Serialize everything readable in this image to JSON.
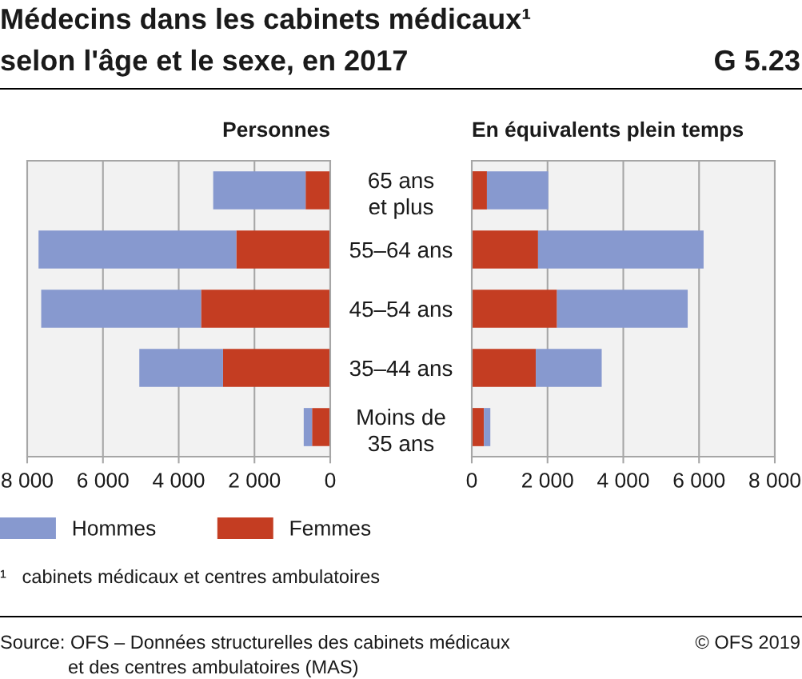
{
  "chart_data": [
    {
      "type": "bar",
      "orientation": "horizontal",
      "stacked": true,
      "title": "Médecins dans les cabinets médicaux¹\nselon l'âge et le sexe, en 2017",
      "subtitle": "Personnes",
      "categories": [
        "65 ans\net plus",
        "55–64 ans",
        "45–54 ans",
        "35–44 ans",
        "Moins de\n35 ans"
      ],
      "series": [
        {
          "name": "Femmes",
          "color": "#c43d22",
          "values": [
            650,
            2480,
            3410,
            2830,
            480
          ]
        },
        {
          "name": "Hommes",
          "color": "#8799cf",
          "values": [
            2440,
            5220,
            4220,
            2210,
            220
          ]
        }
      ],
      "xlim": [
        8000,
        0
      ],
      "xticks": [
        {
          "value": 8000,
          "label": "8 000"
        },
        {
          "value": 6000,
          "label": "6 000"
        },
        {
          "value": 4000,
          "label": "4 000"
        },
        {
          "value": 2000,
          "label": "2 000"
        },
        0
      ],
      "grid": "x",
      "legend": "bottom",
      "annotations": [
        "G 5.23",
        "¹   cabinets médicaux et centres ambulatoires",
        "Source: OFS – Données structurelles des cabinets médicaux\net des centres ambulatoires (MAS)",
        "© OFS 2019"
      ]
    },
    {
      "type": "bar",
      "orientation": "horizontal",
      "stacked": true,
      "subtitle": "En équivalents plein temps",
      "categories": [
        null,
        null,
        null,
        null,
        null
      ],
      "series": [
        {
          "color": "#c43d22",
          "values": [
            400,
            1750,
            2250,
            1690,
            320
          ]
        },
        {
          "color": "#8799cf",
          "values": [
            1620,
            4370,
            3450,
            1740,
            170
          ]
        }
      ],
      "xlim": [
        0,
        8000
      ],
      "xticks": [
        0,
        {
          "value": 2000,
          "label": "2 000"
        },
        {
          "value": 4000,
          "label": "4 000"
        },
        {
          "value": 6000,
          "label": "6 000"
        },
        {
          "value": 8000,
          "label": "8 000"
        }
      ],
      "grid": "x"
    }
  ]
}
